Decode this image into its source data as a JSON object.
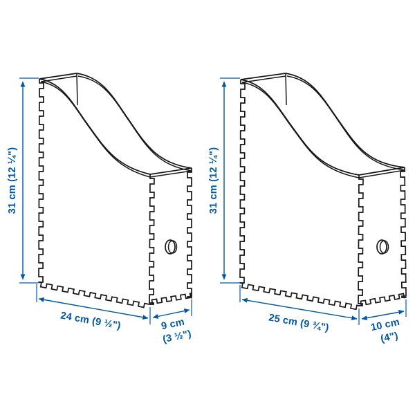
{
  "image_type": "product-dimension-diagram",
  "colors": {
    "dimension_blue": "#0058a3",
    "line_black": "#161616",
    "background": "#ffffff"
  },
  "products": [
    {
      "id": "magazine-file-small",
      "height_label": "31 cm (12 ¼\")",
      "width_label": "24 cm (9 ½\")",
      "depth_label_line1": "9 cm",
      "depth_label_line2": "(3 ½\")"
    },
    {
      "id": "magazine-file-large",
      "height_label": "31 cm (12 ¼\")",
      "width_label": "25 cm (9 ¾\")",
      "depth_label_line1": "10 cm",
      "depth_label_line2": "(4\")"
    }
  ]
}
